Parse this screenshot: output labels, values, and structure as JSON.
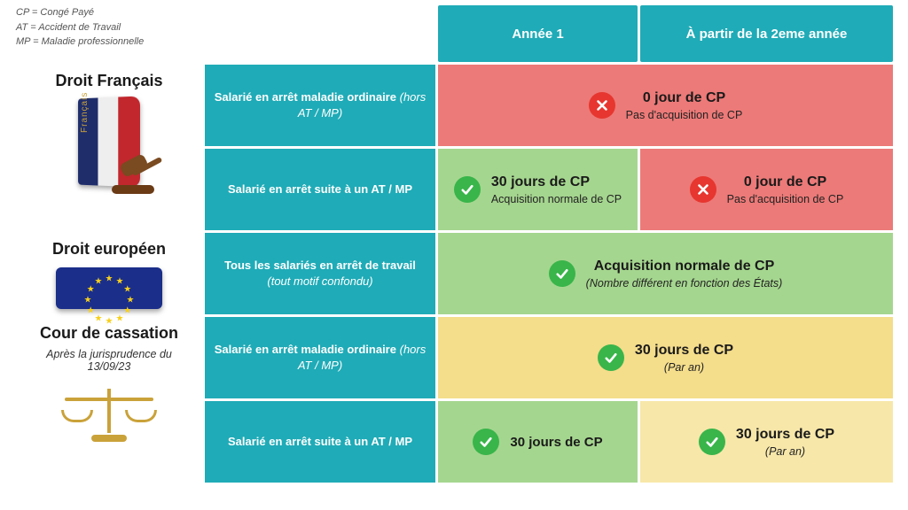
{
  "legend": {
    "cp": "CP = Congé Payé",
    "at": "AT = Accident de Travail",
    "mp": "MP = Maladie professionnelle"
  },
  "headers": {
    "year1": "Année 1",
    "year2": "À partir de la 2eme année"
  },
  "sections": {
    "fr": {
      "title": "Droit Français",
      "book_label": "Français"
    },
    "eu": {
      "title": "Droit européen"
    },
    "cc": {
      "title": "Cour de cassation",
      "subtitle": "Après la jurisprudence du 13/09/23"
    }
  },
  "rows": {
    "fr1": {
      "label_main": "Salarié en arrêt maladie ordinaire",
      "label_sub": "(hors AT / MP)"
    },
    "fr2": {
      "label_main": "Salarié en arrêt suite à un AT / MP"
    },
    "eu1": {
      "label_main": "Tous les salariés en arrêt de travail",
      "label_sub": "(tout motif confondu)"
    },
    "cc1": {
      "label_main": "Salarié en arrêt maladie ordinaire",
      "label_sub": "(hors AT / MP)"
    },
    "cc2": {
      "label_main": "Salarié en arrêt suite à un AT / MP"
    }
  },
  "results": {
    "zero": {
      "title": "0 jour de CP",
      "sub": "Pas d'acquisition de CP"
    },
    "thirty_norm": {
      "title": "30 jours de CP",
      "sub": "Acquisition normale de CP"
    },
    "eu_norm": {
      "title": "Acquisition normale de CP",
      "sub": "(Nombre différent en fonction des États)"
    },
    "thirty_only": {
      "title": "30 jours de CP"
    },
    "thirty_py": {
      "title": "30 jours de CP",
      "sub": "(Par an)"
    }
  },
  "colors": {
    "teal": "#1fabb7",
    "red": "#ec7a78",
    "green": "#a5d68f",
    "yellow": "#f4dd8b",
    "ok_icon": "#39b54a",
    "no_icon": "#e7362f",
    "eu_blue": "#1a2e8a",
    "eu_star": "#f7d01c"
  }
}
